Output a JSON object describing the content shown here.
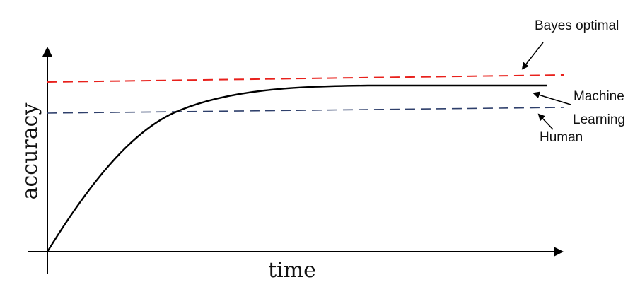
{
  "axes": {
    "x_label": "time",
    "y_label": "accuracy"
  },
  "annotations": {
    "bayes": "Bayes optimal",
    "machine_line1": "Machine",
    "machine_line2": "Learning",
    "human": "Human"
  },
  "colors": {
    "bayes_line": "#e8211c",
    "human_line": "#2e3f6b",
    "ml_curve": "#000000",
    "axis": "#000000"
  }
}
